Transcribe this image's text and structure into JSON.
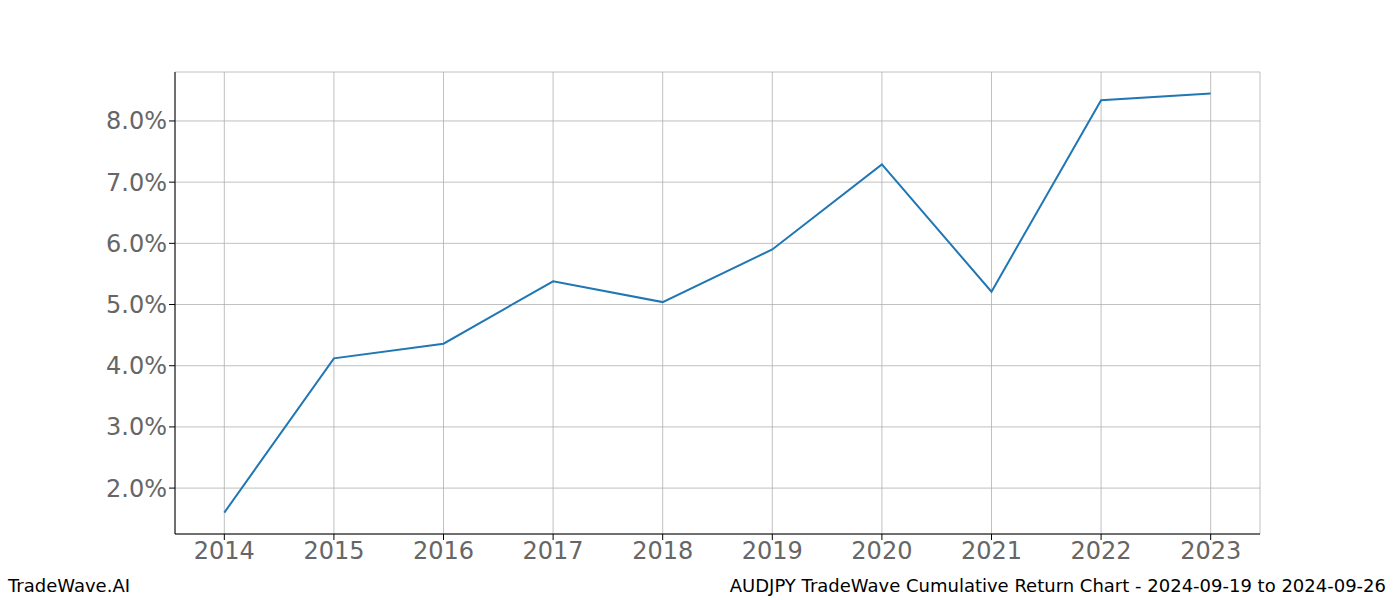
{
  "chart_data": {
    "type": "line",
    "annotations": [
      "TradeWave.AI",
      "AUDJPY TradeWave Cumulative Return Chart - 2024-09-19 to 2024-09-26"
    ],
    "x": [
      2014,
      2015,
      2016,
      2017,
      2018,
      2019,
      2020,
      2021,
      2022,
      2023
    ],
    "values": [
      1.6,
      4.12,
      4.36,
      5.38,
      5.04,
      5.9,
      7.29,
      5.21,
      8.34,
      8.45
    ],
    "color": "#1f77b4",
    "xlim": [
      2013.55,
      2023.45
    ],
    "xticks": [
      2014,
      2015,
      2016,
      2017,
      2018,
      2019,
      2020,
      2021,
      2022,
      2023
    ],
    "ylim": [
      1.25,
      8.8
    ],
    "yticks": [
      {
        "value": 2,
        "label": "2.0%"
      },
      {
        "value": 3,
        "label": "3.0%"
      },
      {
        "value": 4,
        "label": "4.0%"
      },
      {
        "value": 5,
        "label": "5.0%"
      },
      {
        "value": 6,
        "label": "6.0%"
      },
      {
        "value": 7,
        "label": "7.0%"
      },
      {
        "value": 8,
        "label": "8.0%"
      }
    ],
    "grid": true
  }
}
